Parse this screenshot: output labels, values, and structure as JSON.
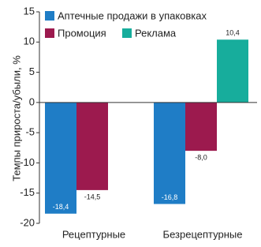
{
  "chart_data": {
    "type": "bar",
    "y_label": "Темпы прироста/убыли, %",
    "categories": [
      "Рецептурные",
      "Безрецептурные"
    ],
    "series": [
      {
        "name": "Аптечные продажи в упаковках",
        "color": "#1f7dc6",
        "values": [
          -18.4,
          -16.8
        ],
        "value_labels": [
          "-18,4",
          "-16,8"
        ]
      },
      {
        "name": "Промоция",
        "color": "#9c1a4e",
        "values": [
          -14.5,
          -8.0
        ],
        "value_labels": [
          "-14,5",
          "-8,0"
        ]
      },
      {
        "name": "Реклама",
        "color": "#17ad9c",
        "values": [
          null,
          10.4
        ],
        "value_labels": [
          null,
          "10,4"
        ]
      }
    ],
    "ylim": [
      -20,
      15
    ],
    "yticks": [
      -20,
      -15,
      -10,
      -5,
      0,
      5,
      10,
      15
    ],
    "grid": false
  }
}
